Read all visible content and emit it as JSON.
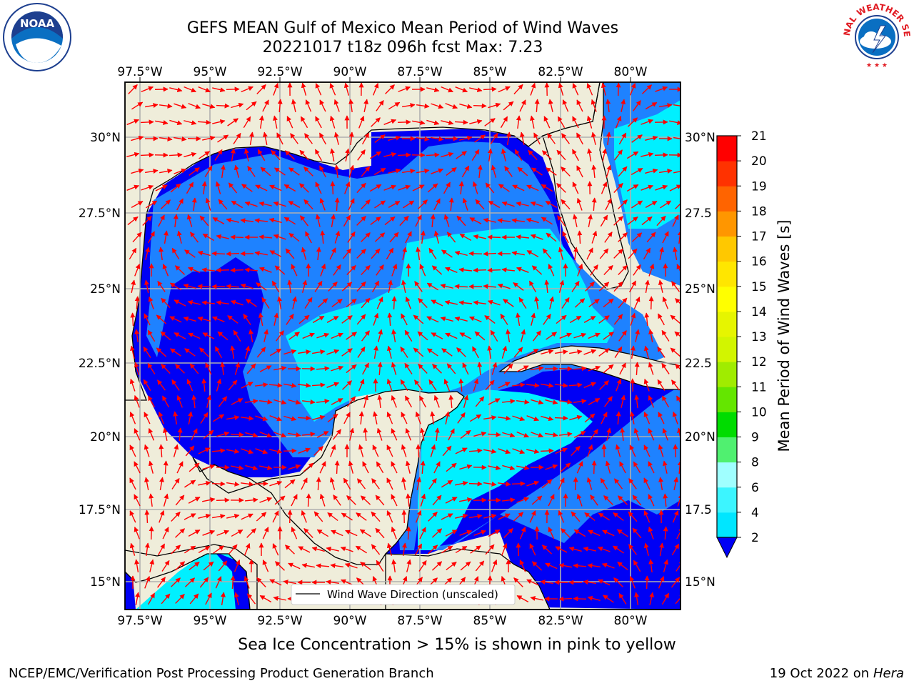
{
  "title": {
    "line1": "GEFS MEAN Gulf of Mexico Mean Period of Wind Waves",
    "line2": "20221017 t18z 096h fcst   Max: 7.23"
  },
  "subtitle": "Sea Ice Concentration > 15% is shown in pink to yellow",
  "footer": {
    "left": "NCEP/EMC/Verification Post Processing Product Generation Branch",
    "right_date": "19 Oct 2022 on",
    "right_host": "Hera"
  },
  "legend": {
    "label": "Wind Wave Direction (unscaled)"
  },
  "axes": {
    "lon_labels": [
      "97.5°W",
      "95°W",
      "92.5°W",
      "90°W",
      "87.5°W",
      "85°W",
      "82.5°W",
      "80°W"
    ],
    "lat_labels": [
      "30°N",
      "27.5°N",
      "25°N",
      "22.5°N",
      "20°N",
      "17.5°N",
      "15°N"
    ],
    "right_lat_labels": [
      "30°N",
      "27.5",
      "25°N",
      "22.5",
      "20°N",
      "17.5",
      "15°N"
    ]
  },
  "colorbar": {
    "label": "Mean Period of Wind Waves [s]",
    "ticks": [
      "2",
      "4",
      "6",
      "8",
      "9",
      "10",
      "11",
      "12",
      "13",
      "14",
      "15",
      "16",
      "17",
      "18",
      "19",
      "20",
      "21"
    ],
    "colors": [
      "#1e82ff",
      "#00e6ff",
      "#3cf5ff",
      "#a0ffff",
      "#50f070",
      "#00dc00",
      "#64e600",
      "#a0ec00",
      "#d2f500",
      "#e6f500",
      "#ffff00",
      "#ffe600",
      "#ffc800",
      "#ff9600",
      "#ff6400",
      "#ff3200",
      "#ff0000"
    ]
  },
  "logos": {
    "noaa": "NOAA",
    "nws": "NATIONAL WEATHER SERVICE"
  },
  "colors": {
    "land": "#efedda",
    "ocean_low": "#0000f5",
    "ocean_mid": "#1e82ff",
    "ocean_high": "#00f0ff",
    "arrow": "#ff0000",
    "grid": "#b0b0b0"
  }
}
